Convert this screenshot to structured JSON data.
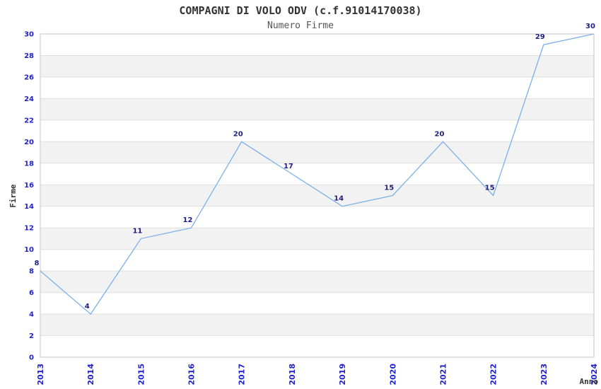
{
  "header": {
    "title": "COMPAGNI DI VOLO ODV (c.f.91014170038)",
    "subtitle": "Numero Firme"
  },
  "chart_data": {
    "type": "line",
    "title": "COMPAGNI DI VOLO ODV (c.f.91014170038)",
    "subtitle": "Numero Firme",
    "xlabel": "Anno",
    "ylabel": "Firme",
    "x": [
      "2013",
      "2014",
      "2015",
      "2016",
      "2017",
      "2018",
      "2019",
      "2020",
      "2021",
      "2022",
      "2023",
      "2024"
    ],
    "series": [
      {
        "name": "Numero Firme",
        "values": [
          8,
          4,
          11,
          12,
          20,
          17,
          14,
          15,
          20,
          15,
          29,
          30
        ]
      }
    ],
    "values": [
      8,
      4,
      11,
      12,
      20,
      17,
      14,
      15,
      20,
      15,
      29,
      30
    ],
    "ylim": [
      0,
      30
    ],
    "ytick_step": 2,
    "grid": true,
    "legend": false,
    "x_tick_rotation_deg": 90,
    "data_labels_visible": true,
    "colors": {
      "line": "#7CB0E8",
      "tick_label": "#2222CC",
      "data_label": "#202082",
      "band": "#F2F2F2",
      "gridline": "#E0E0E0",
      "border": "#C4C4C4",
      "title": "#333333",
      "subtitle": "#555555",
      "axis_label": "#333333",
      "background": "#FFFFFF"
    }
  }
}
